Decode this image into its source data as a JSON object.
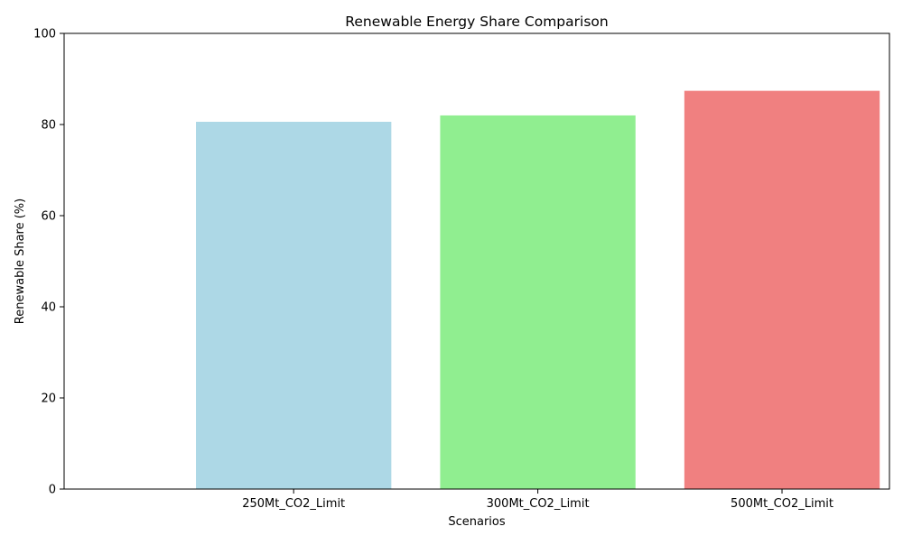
{
  "chart_data": {
    "type": "bar",
    "title": "Renewable Energy Share Comparison",
    "xlabel": "Scenarios",
    "ylabel": "Renewable Share (%)",
    "categories": [
      "250Mt_CO2_Limit",
      "300Mt_CO2_Limit",
      "500Mt_CO2_Limit"
    ],
    "values": [
      80.6,
      82.0,
      87.4
    ],
    "colors": [
      "#add8e6",
      "#90ee90",
      "#f08080"
    ],
    "ylim": [
      0,
      100
    ],
    "yticks": [
      "0",
      "20",
      "40",
      "60",
      "80",
      "100"
    ],
    "grid": false,
    "legend": "none"
  }
}
